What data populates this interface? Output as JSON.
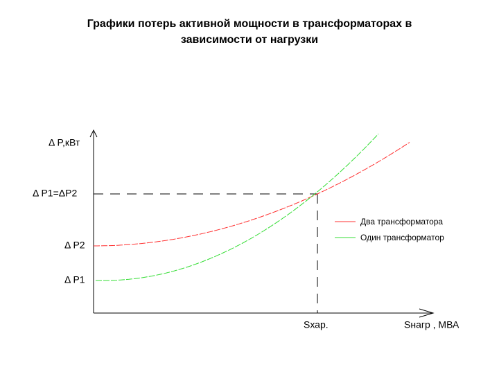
{
  "header": {
    "title_lines": [
      "Графики потерь активной мощности в трансформаторах в",
      "зависимости от нагрузки"
    ]
  },
  "axes": {
    "y_label": "Δ P,кВт",
    "x_label": "Sнагр , МВА",
    "y_marks": [
      "Δ P1=ΔP2",
      "Δ P2",
      "Δ P1"
    ],
    "x_mark": "Sхар."
  },
  "legend": [
    "Два трансформатора",
    "Один трансформатор"
  ]
}
